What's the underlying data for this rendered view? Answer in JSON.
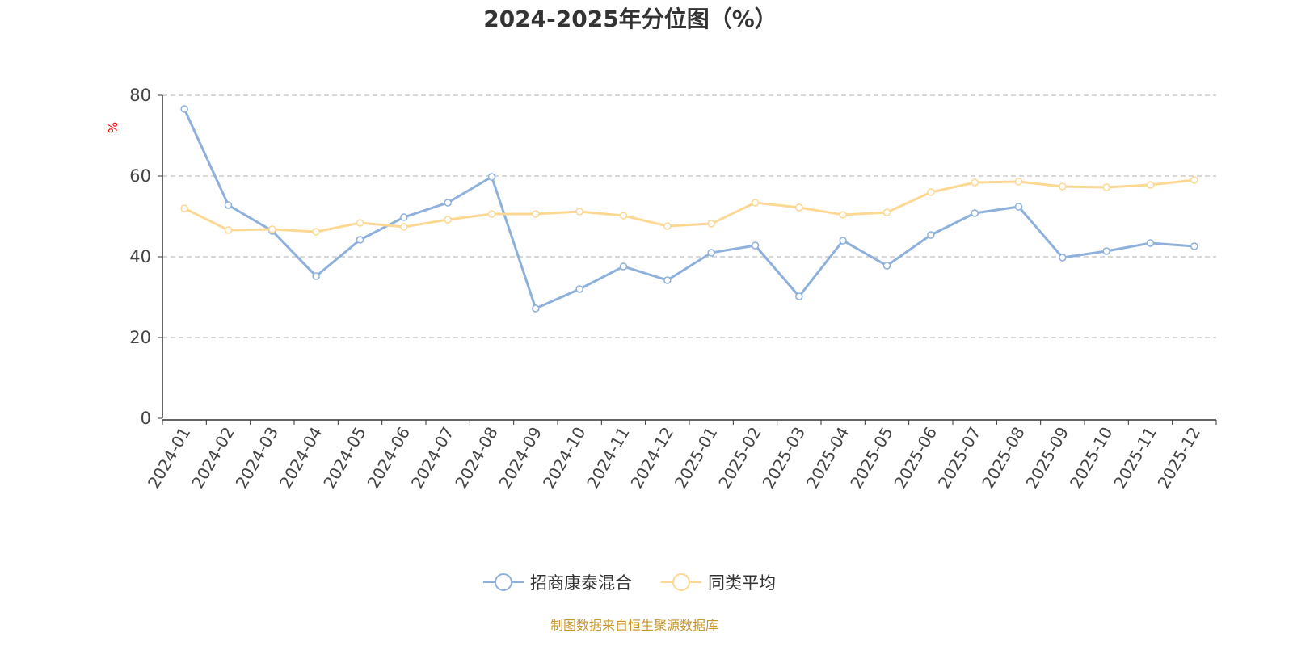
{
  "chart_data": {
    "type": "line",
    "title": "2024-2025年分位图（%）",
    "ylabel": "%",
    "xlabel": "",
    "ylim": [
      0,
      80
    ],
    "yticks": [
      0,
      20,
      40,
      60,
      80
    ],
    "grid": "horizontal dashed",
    "legend_position": "bottom",
    "categories": [
      "2024-01",
      "2024-02",
      "2024-03",
      "2024-04",
      "2024-05",
      "2024-06",
      "2024-07",
      "2024-08",
      "2024-09",
      "2024-10",
      "2024-11",
      "2024-12",
      "2025-01",
      "2025-02",
      "2025-03",
      "2025-04",
      "2025-05",
      "2025-06",
      "2025-07",
      "2025-08",
      "2025-09",
      "2025-10",
      "2025-11",
      "2025-12"
    ],
    "series": [
      {
        "name": "招商康泰混合",
        "color": "#8eb0dc",
        "values": [
          76.6,
          52.8,
          46.4,
          35.2,
          44.2,
          49.8,
          53.4,
          59.8,
          27.2,
          32.0,
          37.6,
          34.2,
          41.0,
          42.8,
          30.2,
          44.0,
          37.8,
          45.4,
          50.8,
          52.4,
          39.8,
          41.4,
          43.4,
          42.6
        ]
      },
      {
        "name": "同类平均",
        "color": "#fdd893",
        "values": [
          52.0,
          46.6,
          46.8,
          46.2,
          48.4,
          47.4,
          49.2,
          50.6,
          50.6,
          51.2,
          50.2,
          47.6,
          48.2,
          53.4,
          52.2,
          50.4,
          51.0,
          56.0,
          58.4,
          58.6,
          57.4,
          57.2,
          57.8,
          59.0
        ]
      }
    ]
  },
  "footer": {
    "source": "制图数据来自恒生聚源数据库",
    "color": "#c9962a"
  }
}
